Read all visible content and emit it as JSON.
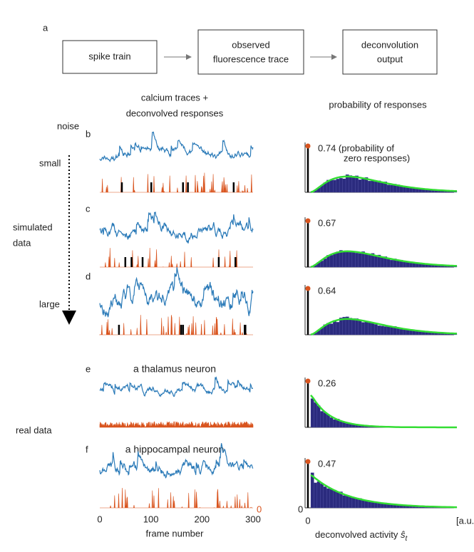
{
  "panel_label": "a",
  "flow": [
    {
      "lines": [
        "spike train"
      ]
    },
    {
      "lines": [
        "observed",
        "fluorescence trace"
      ]
    },
    {
      "lines": [
        "deconvolution",
        "output"
      ]
    }
  ],
  "column_headers": {
    "traces": [
      "calcium traces +",
      "deconvolved responses"
    ],
    "histograms": "probability of responses"
  },
  "row_labels": {
    "noise": "noise",
    "small": "small",
    "simulated": [
      "simulated",
      "data"
    ],
    "large": "large",
    "real": "real data"
  },
  "panels": [
    {
      "label": "b",
      "prob": "0.74 (probability of",
      "prob_note": "zero responses)"
    },
    {
      "label": "c",
      "prob": "0.67"
    },
    {
      "label": "d",
      "prob": "0.64"
    },
    {
      "label": "e",
      "title": "a thalamus neuron",
      "prob": "0.26"
    },
    {
      "label": "f",
      "title": "a hippocampal neuron",
      "prob": "0.47"
    }
  ],
  "trace_axis": {
    "ticks": [
      "0",
      "100",
      "200",
      "300"
    ],
    "label": "frame number",
    "zero_label": "0"
  },
  "hist_axis": {
    "tick": "0",
    "y_tick": "0",
    "unit": "[a.u.]",
    "label": "deconvolved activity",
    "symbol": "ŝ",
    "subscript": "t"
  }
}
